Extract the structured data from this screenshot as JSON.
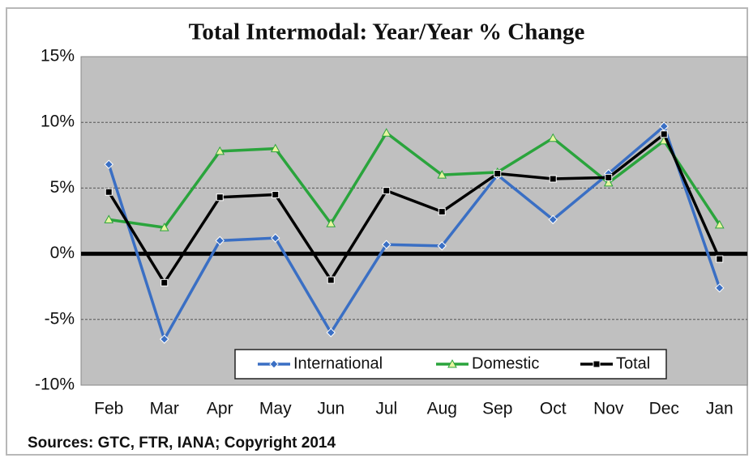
{
  "chart_data": {
    "type": "line",
    "title": "Total Intermodal: Year/Year % Change",
    "source": "Sources: GTC, FTR, IANA; Copyright 2014",
    "categories": [
      "Feb",
      "Mar",
      "Apr",
      "May",
      "Jun",
      "Jul",
      "Aug",
      "Sep",
      "Oct",
      "Nov",
      "Dec",
      "Jan"
    ],
    "series": [
      {
        "name": "International",
        "color": "#3a6fc4",
        "marker": "diamond",
        "values": [
          6.8,
          -6.5,
          1.0,
          1.2,
          -6.0,
          0.7,
          0.6,
          6.0,
          2.6,
          6.1,
          9.7,
          -2.6
        ]
      },
      {
        "name": "Domestic",
        "color": "#2aa43c",
        "marker": "triangle",
        "values": [
          2.6,
          2.0,
          7.8,
          8.0,
          2.3,
          9.2,
          6.0,
          6.2,
          8.8,
          5.4,
          8.6,
          2.2
        ]
      },
      {
        "name": "Total",
        "color": "#000000",
        "marker": "square",
        "values": [
          4.7,
          -2.2,
          4.3,
          4.5,
          -2.0,
          4.8,
          3.2,
          6.1,
          5.7,
          5.8,
          9.1,
          -0.4
        ]
      }
    ],
    "ylim": [
      -10,
      15
    ],
    "yticks": [
      {
        "value": -10,
        "label": "-10%"
      },
      {
        "value": -5,
        "label": "-5%"
      },
      {
        "value": 0,
        "label": "0%"
      },
      {
        "value": 5,
        "label": "5%"
      },
      {
        "value": 10,
        "label": "10%"
      },
      {
        "value": 15,
        "label": "15%"
      }
    ],
    "grid": true,
    "legend": "bottom"
  }
}
